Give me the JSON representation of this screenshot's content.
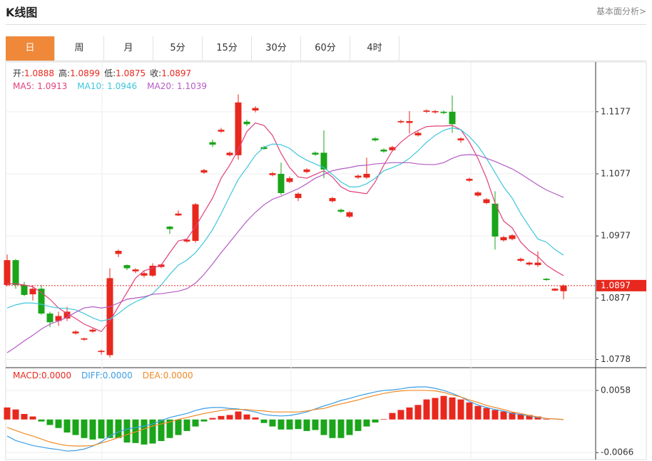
{
  "header": {
    "title": "K线图",
    "link": "基本面分析>"
  },
  "tabs": [
    "日",
    "周",
    "月",
    "5分",
    "15分",
    "30分",
    "60分",
    "4时"
  ],
  "chart_data": [
    {
      "type": "candlestick",
      "info": [
        {
          "label": "开:",
          "value": 1.0888
        },
        {
          "label": "高:",
          "value": 1.0899
        },
        {
          "label": "低:",
          "value": 1.0875
        },
        {
          "label": "收:",
          "value": 1.0897
        }
      ],
      "up_color": "#e8281e",
      "down_color": "#1aa51a",
      "open": [
        1.0898,
        1.0938,
        1.0898,
        1.0883,
        1.0892,
        1.0852,
        1.084,
        1.0844,
        1.082,
        1.081,
        1.0823,
        1.079,
        1.0785,
        1.0948,
        1.093,
        1.092,
        1.0913,
        1.0913,
        1.0927,
        1.0992,
        1.101,
        1.0968,
        1.0969,
        1.1079,
        1.1128,
        1.1145,
        1.1107,
        1.1107,
        1.1161,
        1.1179,
        1.112,
        1.1075,
        1.1077,
        1.1064,
        1.1038,
        1.108,
        1.1111,
        1.1111,
        1.1033,
        1.1019,
        1.1008,
        1.1071,
        1.1071,
        1.1134,
        1.1116,
        1.1115,
        1.116,
        1.1159,
        1.1139,
        1.1177,
        1.1176,
        1.1177,
        1.1177,
        1.1131,
        1.1066,
        1.1042,
        1.103,
        1.1029,
        1.097,
        1.0972,
        1.0937,
        1.0931,
        1.093,
        1.0908,
        1.0889,
        1.0888
      ],
      "high": [
        1.0947,
        1.094,
        1.0903,
        1.0898,
        1.0898,
        1.0855,
        1.0855,
        1.0863,
        1.0825,
        1.0813,
        1.0828,
        1.0794,
        1.0925,
        1.0955,
        1.0931,
        1.0925,
        1.0921,
        1.0933,
        1.0932,
        1.0993,
        1.1018,
        1.0972,
        1.103,
        1.1085,
        1.1132,
        1.1151,
        1.1113,
        1.1205,
        1.1164,
        1.1186,
        1.1122,
        1.108,
        1.1095,
        1.1073,
        1.1047,
        1.1086,
        1.1113,
        1.1147,
        1.104,
        1.1021,
        1.1017,
        1.1076,
        1.1103,
        1.1136,
        1.1118,
        1.1122,
        1.1164,
        1.1178,
        1.1146,
        1.1181,
        1.118,
        1.1179,
        1.1203,
        1.1136,
        1.1071,
        1.1049,
        1.1038,
        1.1049,
        1.0977,
        1.098,
        1.0942,
        1.0936,
        1.0952,
        1.0909,
        1.0893,
        1.0899
      ],
      "low": [
        1.0896,
        1.0892,
        1.088,
        1.0873,
        1.085,
        1.083,
        1.0832,
        1.084,
        1.0818,
        1.0808,
        1.0821,
        1.0786,
        1.0781,
        1.0943,
        1.0922,
        1.0917,
        1.091,
        1.0911,
        1.0925,
        1.098,
        1.1009,
        1.0966,
        1.0966,
        1.1077,
        1.112,
        1.1143,
        1.1105,
        1.11,
        1.1154,
        1.1176,
        1.1116,
        1.1073,
        1.1043,
        1.1062,
        1.1033,
        1.1078,
        1.1106,
        1.107,
        1.1031,
        1.1014,
        1.1006,
        1.1069,
        1.1069,
        1.1129,
        1.1111,
        1.1113,
        1.1158,
        1.1142,
        1.1137,
        1.1175,
        1.1174,
        1.1173,
        1.1143,
        1.1127,
        1.1064,
        1.104,
        1.1028,
        1.0955,
        1.0968,
        1.097,
        1.0935,
        1.0929,
        1.0927,
        1.0905,
        1.0888,
        1.0875
      ],
      "close": [
        1.0938,
        1.0898,
        1.0882,
        1.0892,
        1.0852,
        1.0838,
        1.0848,
        1.0855,
        1.0823,
        1.0812,
        1.0826,
        1.0792,
        1.0909,
        1.0953,
        1.0925,
        1.0923,
        1.0917,
        1.0929,
        1.0931,
        1.0988,
        1.1013,
        1.0971,
        1.1028,
        1.1083,
        1.1124,
        1.1148,
        1.1111,
        1.1192,
        1.1157,
        1.1183,
        1.1117,
        1.1078,
        1.1046,
        1.107,
        1.1045,
        1.1084,
        1.1108,
        1.1084,
        1.1038,
        1.1016,
        1.1015,
        1.1074,
        1.1077,
        1.1131,
        1.1113,
        1.112,
        1.1162,
        1.1162,
        1.1143,
        1.1179,
        1.1178,
        1.1175,
        1.1157,
        1.1134,
        1.1069,
        1.1047,
        1.1036,
        1.0976,
        1.0975,
        1.0978,
        1.094,
        1.0934,
        1.0934,
        1.0906,
        1.0892,
        1.0897
      ],
      "series": [
        {
          "name": "MA5:",
          "legend_value": 1.0913,
          "color": "#e0407c",
          "values": [
            1.09,
            1.09,
            1.0898,
            1.0895,
            1.0886,
            1.0875,
            1.0861,
            1.0852,
            1.0844,
            1.0835,
            1.0829,
            1.0823,
            1.084,
            1.0863,
            1.0886,
            1.0909,
            1.0921,
            1.0925,
            1.093,
            1.095,
            1.0969,
            1.0972,
            1.0992,
            1.1015,
            1.1038,
            1.107,
            1.1091,
            1.1116,
            1.1145,
            1.1159,
            1.1155,
            1.1139,
            1.111,
            1.1087,
            1.1072,
            1.107,
            1.1076,
            1.1082,
            1.1072,
            1.1056,
            1.1049,
            1.1047,
            1.1045,
            1.1064,
            1.1091,
            1.1114,
            1.1128,
            1.1139,
            1.1147,
            1.1153,
            1.1154,
            1.1154,
            1.1155,
            1.1148,
            1.1128,
            1.1102,
            1.107,
            1.103,
            1.1001,
            1.099,
            1.0967,
            1.0953,
            1.0944,
            1.093,
            1.0921,
            1.0913
          ]
        },
        {
          "name": "MA10:",
          "legend_value": 1.0946,
          "color": "#3fc6dc",
          "values": [
            1.0861,
            1.0866,
            1.0869,
            1.0869,
            1.0867,
            1.0863,
            1.0861,
            1.086,
            1.0858,
            1.0852,
            1.0845,
            1.084,
            1.0843,
            1.0852,
            1.0863,
            1.0871,
            1.0877,
            1.0884,
            1.0898,
            1.0915,
            1.093,
            1.0938,
            1.095,
            1.0967,
            1.0987,
            1.1013,
            1.1041,
            1.1068,
            1.1087,
            1.1107,
            1.112,
            1.1125,
            1.1124,
            1.1118,
            1.1107,
            1.1099,
            1.1093,
            1.1087,
            1.1076,
            1.1064,
            1.1056,
            1.1056,
            1.1061,
            1.107,
            1.1082,
            1.1087,
            1.1093,
            1.1102,
            1.1114,
            1.1128,
            1.1139,
            1.1147,
            1.1151,
            1.1148,
            1.1137,
            1.1122,
            1.1102,
            1.1079,
            1.1056,
            1.1038,
            1.1013,
            1.0992,
            1.0972,
            1.0967,
            1.0955,
            1.0946
          ]
        },
        {
          "name": "MA20:",
          "legend_value": 1.1039,
          "color": "#b45bc4",
          "values": [
            1.0789,
            1.0798,
            1.0808,
            1.0817,
            1.0827,
            1.0835,
            1.084,
            1.0846,
            1.0854,
            1.0861,
            1.0863,
            1.0861,
            1.0863,
            1.0869,
            1.0875,
            1.0877,
            1.0879,
            1.0883,
            1.0884,
            1.0886,
            1.0888,
            1.0892,
            1.0901,
            1.0915,
            1.0932,
            1.095,
            1.0967,
            1.0984,
            1.1001,
            1.1015,
            1.1027,
            1.1036,
            1.1041,
            1.1047,
            1.1053,
            1.1061,
            1.107,
            1.1076,
            1.1082,
            1.1085,
            1.1087,
            1.109,
            1.1091,
            1.1093,
            1.1094,
            1.1095,
            1.1095,
            1.1095,
            1.1093,
            1.1092,
            1.1092,
            1.1095,
            1.1102,
            1.1107,
            1.1108,
            1.1107,
            1.1102,
            1.1097,
            1.1091,
            1.1085,
            1.1077,
            1.1068,
            1.1059,
            1.1051,
            1.1045,
            1.1039
          ]
        }
      ],
      "current_price": 1.0897,
      "ylim": [
        1.0766,
        1.1256
      ],
      "yticks": [
        1.1177,
        1.1077,
        1.0977,
        1.0877,
        1.0778
      ],
      "grid": true
    },
    {
      "type": "macd",
      "histogram": {
        "name": "MACD:",
        "legend_value": "0.0000",
        "up_color": "#e8281e",
        "down_color": "#1aa51a",
        "values": [
          0.0024,
          0.002,
          0.0011,
          0.0006,
          -0.0004,
          -0.0011,
          -0.0017,
          -0.0026,
          -0.0031,
          -0.0037,
          -0.004,
          -0.0038,
          -0.0037,
          -0.0037,
          -0.0046,
          -0.0047,
          -0.005,
          -0.0048,
          -0.0043,
          -0.0037,
          -0.0031,
          -0.0023,
          -0.0014,
          -0.0004,
          0.0003,
          0.0007,
          0.0009,
          0.0016,
          0.001,
          0.0004,
          -0.0007,
          -0.0014,
          -0.002,
          -0.002,
          -0.0019,
          -0.0023,
          -0.0021,
          -0.0031,
          -0.0037,
          -0.0037,
          -0.0031,
          -0.0023,
          -0.0014,
          -0.0006,
          0.0001,
          0.0013,
          0.0019,
          0.0024,
          0.0029,
          0.004,
          0.0043,
          0.0047,
          0.0044,
          0.004,
          0.0034,
          0.0027,
          0.0023,
          0.0019,
          0.0016,
          0.0014,
          0.0011,
          0.0009,
          0.0006,
          0.0001,
          0,
          0
        ]
      },
      "series": [
        {
          "name": "DIFF:",
          "legend_value": "0.0000",
          "color": "#3c9ee5",
          "values": [
            -0.0033,
            -0.0042,
            -0.0047,
            -0.0052,
            -0.0055,
            -0.0058,
            -0.006,
            -0.0063,
            -0.0062,
            -0.0059,
            -0.0053,
            -0.0045,
            -0.0033,
            -0.0025,
            -0.0019,
            -0.0016,
            -0.0013,
            -0.0009,
            -0.0002,
            0.0004,
            0.0008,
            0.0012,
            0.0018,
            0.0022,
            0.0024,
            0.0024,
            0.0022,
            0.0021,
            0.0018,
            0.0015,
            0.001,
            0.0008,
            0.0007,
            0.0008,
            0.0011,
            0.0015,
            0.0021,
            0.0027,
            0.0032,
            0.0038,
            0.0042,
            0.0047,
            0.0051,
            0.0055,
            0.0058,
            0.0059,
            0.0061,
            0.0064,
            0.0065,
            0.0065,
            0.0062,
            0.0058,
            0.0052,
            0.0045,
            0.0036,
            0.0029,
            0.0024,
            0.002,
            0.0017,
            0.0012,
            0.001,
            0.0007,
            0.0004,
            0.0002,
            0.0001,
            0
          ]
        },
        {
          "name": "DEA:",
          "legend_value": "0.0000",
          "color": "#f08a24",
          "values": [
            -0.0016,
            -0.0022,
            -0.0028,
            -0.0033,
            -0.0039,
            -0.0045,
            -0.0049,
            -0.0052,
            -0.0053,
            -0.0053,
            -0.0052,
            -0.0047,
            -0.0042,
            -0.0036,
            -0.003,
            -0.0025,
            -0.0019,
            -0.0013,
            -0.0009,
            -0.0005,
            0,
            0.0004,
            0.0008,
            0.0012,
            0.0015,
            0.0018,
            0.002,
            0.002,
            0.002,
            0.0018,
            0.0017,
            0.0015,
            0.0015,
            0.0015,
            0.0015,
            0.0017,
            0.002,
            0.0022,
            0.0027,
            0.0031,
            0.0035,
            0.0039,
            0.0044,
            0.0048,
            0.0052,
            0.0055,
            0.0057,
            0.0058,
            0.0058,
            0.0058,
            0.0057,
            0.0054,
            0.0049,
            0.0045,
            0.0039,
            0.0034,
            0.0028,
            0.0024,
            0.002,
            0.0015,
            0.0012,
            0.0008,
            0.0005,
            0.0002,
            0.0001,
            0
          ]
        }
      ],
      "ylim": [
        -0.008,
        0.0102
      ],
      "yticks": [
        0.0058,
        -0.0066
      ],
      "grid": true
    }
  ]
}
